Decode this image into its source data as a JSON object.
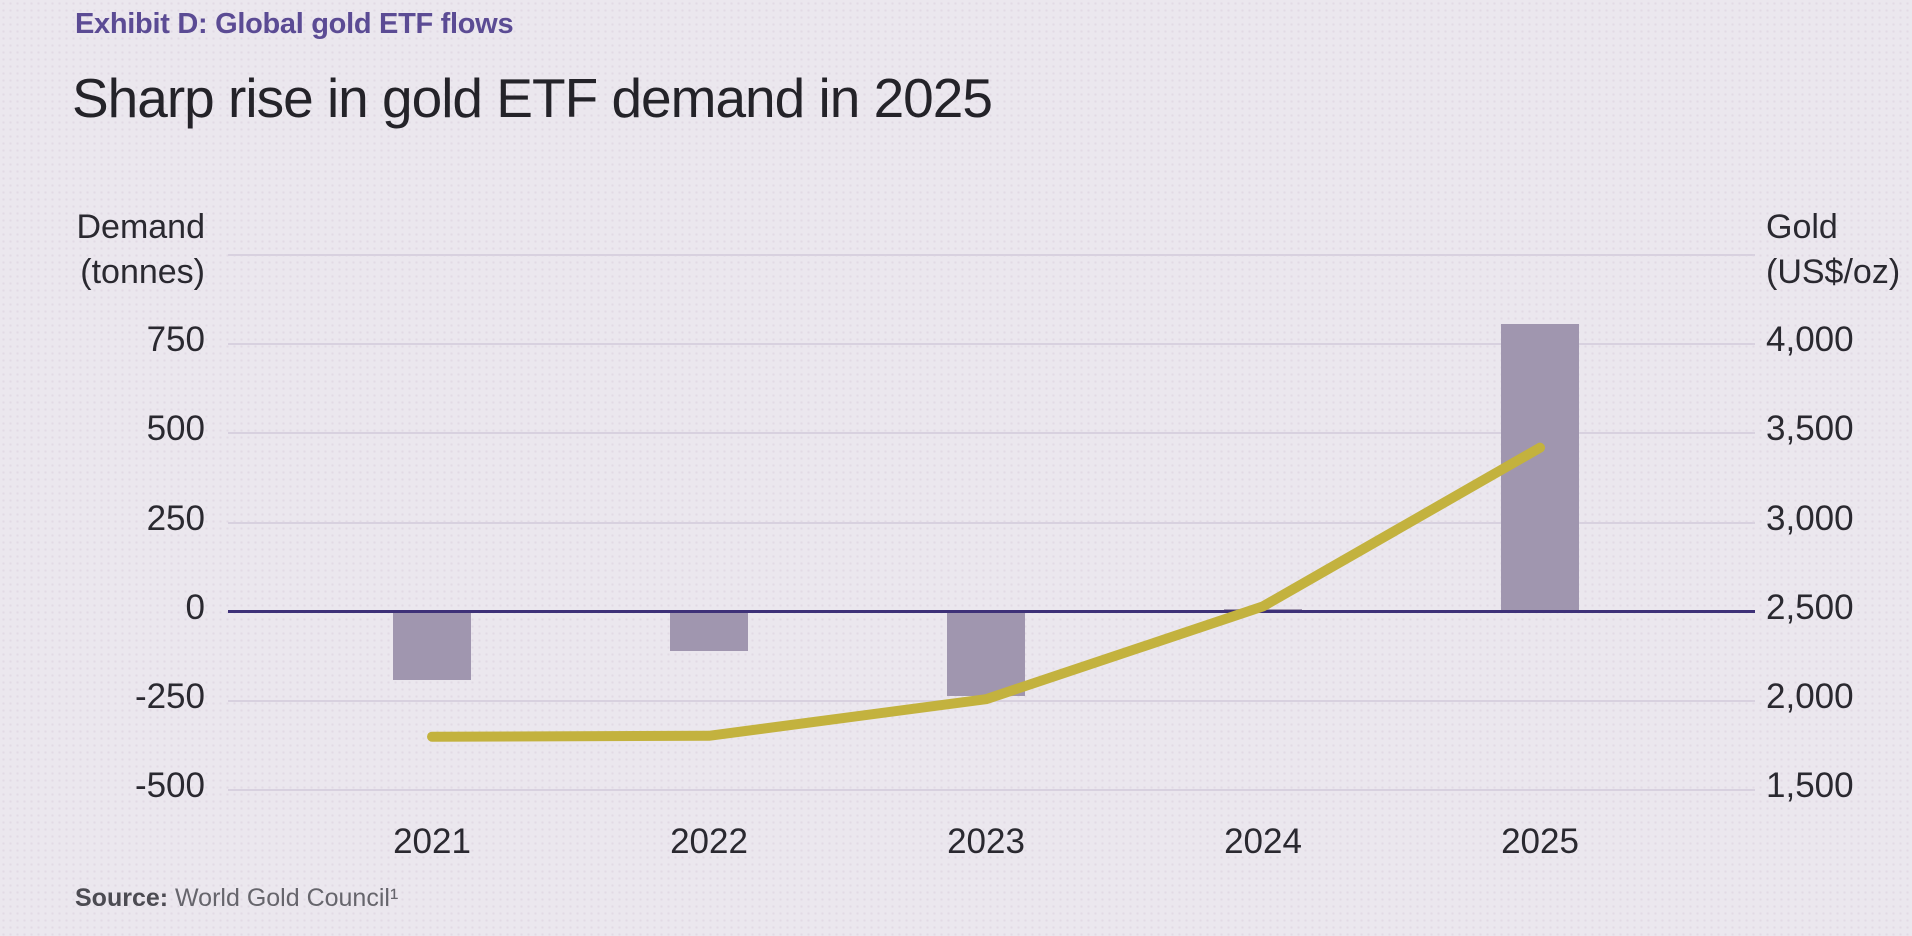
{
  "header": {
    "exhibit_label": "Exhibit D: Global gold ETF flows",
    "title": "Sharp rise in gold ETF demand in 2025"
  },
  "source": {
    "label": "Source:",
    "text": " World Gold Council¹"
  },
  "colors": {
    "background": "#ebe7ee",
    "bar": "#a096af",
    "line": "#c3b23e",
    "zero_line": "#3e3178",
    "gridline": "#d8d1df",
    "exhibit_label": "#5b4b94",
    "text": "#2a2930"
  },
  "chart_data": {
    "type": "combo",
    "categories": [
      "2021",
      "2022",
      "2023",
      "2024",
      "2025"
    ],
    "series": [
      {
        "name": "Global gold ETF flows",
        "type": "bar",
        "axis": "left",
        "unit": "tonnes",
        "color": "#a096af",
        "values": [
          -190,
          -110,
          -237,
          8,
          807
        ]
      },
      {
        "name": "Gold price",
        "type": "line",
        "axis": "right",
        "unit": "US$/oz",
        "color": "#c3b23e",
        "values": [
          1800,
          1805,
          2010,
          2530,
          3420
        ]
      }
    ],
    "left_axis": {
      "title_line1": "Demand",
      "title_line2": "(tonnes)",
      "ylim": [
        -500,
        1000
      ]
    },
    "right_axis": {
      "title_line1": "Gold",
      "title_line2": "(US$/oz)",
      "ylim": [
        1500,
        4500
      ]
    },
    "y_ticks": [
      {
        "left": "",
        "right": "",
        "tonnes": 1000,
        "zero": false
      },
      {
        "left": "750",
        "right": "4,000",
        "tonnes": 750,
        "zero": false
      },
      {
        "left": "500",
        "right": "3,500",
        "tonnes": 500,
        "zero": false
      },
      {
        "left": "250",
        "right": "3,000",
        "tonnes": 250,
        "zero": false
      },
      {
        "left": "0",
        "right": "2,500",
        "tonnes": 0,
        "zero": true
      },
      {
        "left": "-250",
        "right": "2,000",
        "tonnes": -250,
        "zero": false
      },
      {
        "left": "-500",
        "right": "1,500",
        "tonnes": -500,
        "zero": false
      }
    ],
    "grid": true,
    "legend": "none"
  }
}
